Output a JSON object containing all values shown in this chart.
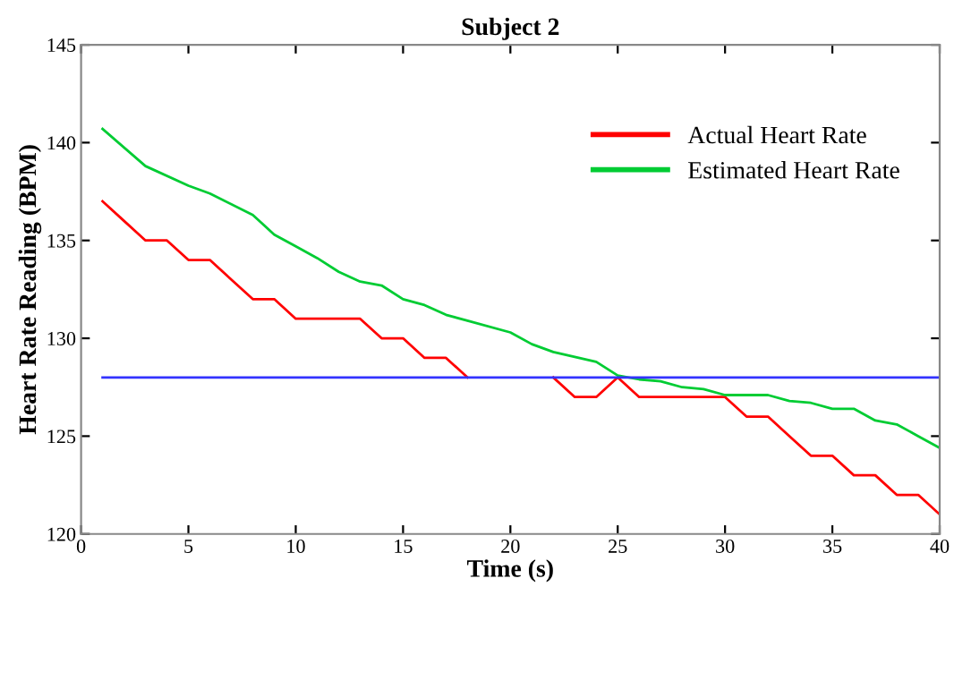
{
  "chart_data": {
    "type": "line",
    "title": "Subject 2",
    "xlabel": "Time (s)",
    "ylabel": "Heart Rate Reading (BPM)",
    "xlim": [
      0,
      40
    ],
    "xticks": [
      0,
      5,
      10,
      15,
      20,
      25,
      30,
      35,
      40
    ],
    "ylim": [
      120,
      145
    ],
    "yticks": [
      120,
      125,
      130,
      135,
      140,
      145
    ],
    "grid": false,
    "legend": "top right",
    "series": [
      {
        "name": "Actual Heart Rate",
        "color": "#ff0000",
        "x": [
          1,
          2,
          3,
          4,
          5,
          6,
          7,
          8,
          9,
          10,
          11,
          12,
          13,
          14,
          15,
          16,
          17,
          18,
          19,
          20,
          21,
          22,
          23,
          24,
          25,
          26,
          27,
          28,
          29,
          30,
          31,
          32,
          33,
          34,
          35,
          36,
          37,
          38,
          39,
          40
        ],
        "values": [
          137,
          136,
          135,
          135,
          134,
          134,
          133,
          132,
          132,
          131,
          131,
          131,
          131,
          130,
          130,
          129,
          129,
          128,
          null,
          null,
          null,
          128,
          127,
          127,
          128,
          127,
          127,
          127,
          127,
          127,
          126,
          126,
          125,
          124,
          124,
          123,
          123,
          122,
          122,
          121
        ]
      },
      {
        "name": "Estimated Heart Rate",
        "color": "#00cc33",
        "x": [
          1,
          3,
          5,
          6,
          8,
          9,
          10,
          11,
          12,
          13,
          14,
          15,
          16,
          17,
          18,
          20,
          21,
          22,
          24,
          25,
          26,
          27,
          28,
          29,
          30,
          32,
          33,
          34,
          35,
          36,
          37,
          38,
          39,
          40
        ],
        "values": [
          140.7,
          138.8,
          137.8,
          137.4,
          136.3,
          135.3,
          134.7,
          134.1,
          133.4,
          132.9,
          132.7,
          132.0,
          131.7,
          131.2,
          130.9,
          130.3,
          129.7,
          129.3,
          128.8,
          128.1,
          127.9,
          127.8,
          127.5,
          127.4,
          127.1,
          127.1,
          126.8,
          126.7,
          126.4,
          126.4,
          125.8,
          125.6,
          125.0,
          124.4
        ]
      },
      {
        "color": "#3333ff",
        "x": [
          1,
          40
        ],
        "values": [
          128,
          128
        ]
      }
    ]
  }
}
